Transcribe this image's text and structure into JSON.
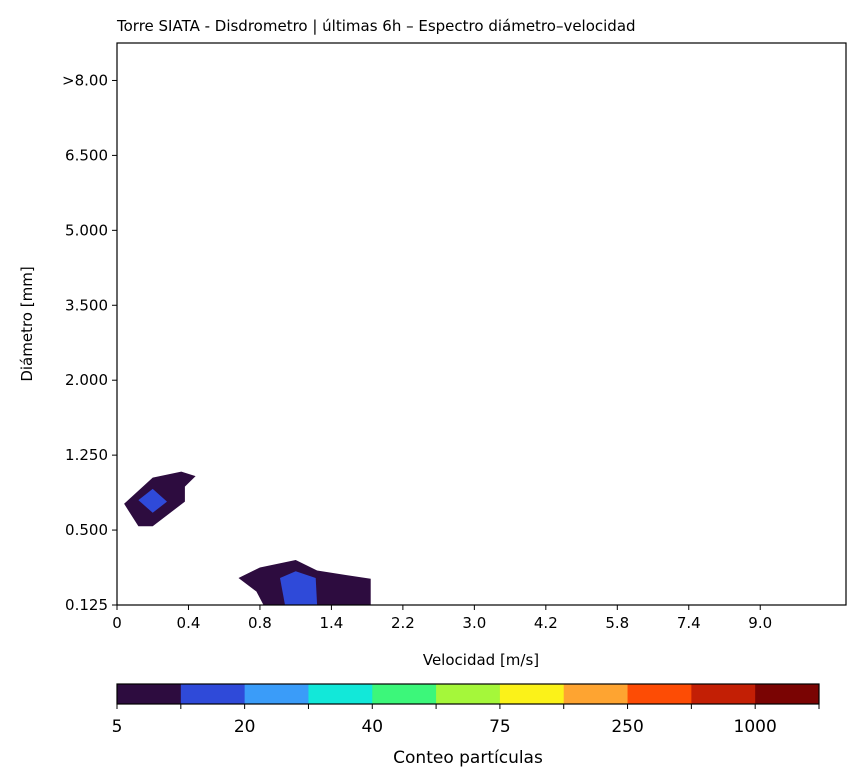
{
  "chart_data": {
    "type": "heatmap",
    "title": "Torre SIATA - Disdrometro | últimas 6h – Espectro diámetro–velocidad",
    "xlabel": "Velocidad [m/s]",
    "ylabel": "Diámetro [mm]",
    "x_ticks": [
      "0",
      "0.4",
      "0.8",
      "1.4",
      "2.2",
      "3.0",
      "4.2",
      "5.8",
      "7.4",
      "9.0"
    ],
    "y_ticks": [
      "0.125",
      "0.500",
      "1.250",
      "2.000",
      "3.500",
      "5.000",
      "6.500",
      ">8.00"
    ],
    "x_index_range": [
      0,
      10.2
    ],
    "y_index_range": [
      0,
      7.5
    ],
    "colorbar": {
      "label": "Conteo partículas",
      "tick_labels": [
        "5",
        "20",
        "40",
        "75",
        "250",
        "1000"
      ],
      "levels": 11,
      "colors": [
        "#2d0c3f",
        "#2f4ad9",
        "#3a9cf9",
        "#12e8d9",
        "#3cf77a",
        "#a5f73a",
        "#fbf219",
        "#fea431",
        "#fd4c05",
        "#c31f05",
        "#7a0403"
      ]
    },
    "regions": [
      {
        "name": "",
        "level": 0,
        "polygon": [
          [
            0.1,
            1.35
          ],
          [
            0.5,
            1.7
          ],
          [
            0.9,
            1.78
          ],
          [
            1.1,
            1.72
          ],
          [
            0.95,
            1.58
          ],
          [
            0.95,
            1.38
          ],
          [
            0.5,
            1.05
          ],
          [
            0.3,
            1.05
          ]
        ]
      },
      {
        "name": "",
        "level": 1,
        "polygon": [
          [
            0.3,
            1.4
          ],
          [
            0.5,
            1.55
          ],
          [
            0.7,
            1.38
          ],
          [
            0.5,
            1.23
          ]
        ]
      },
      {
        "name": "",
        "level": 0,
        "polygon": [
          [
            1.7,
            0.36
          ],
          [
            2.0,
            0.5
          ],
          [
            2.5,
            0.6
          ],
          [
            2.8,
            0.46
          ],
          [
            3.2,
            0.4
          ],
          [
            3.55,
            0.35
          ],
          [
            3.55,
            0.0
          ],
          [
            2.05,
            0.0
          ],
          [
            1.95,
            0.18
          ]
        ]
      },
      {
        "name": "",
        "level": 1,
        "polygon": [
          [
            2.28,
            0.36
          ],
          [
            2.5,
            0.45
          ],
          [
            2.78,
            0.36
          ],
          [
            2.8,
            0.0
          ],
          [
            2.35,
            0.0
          ]
        ]
      }
    ]
  }
}
